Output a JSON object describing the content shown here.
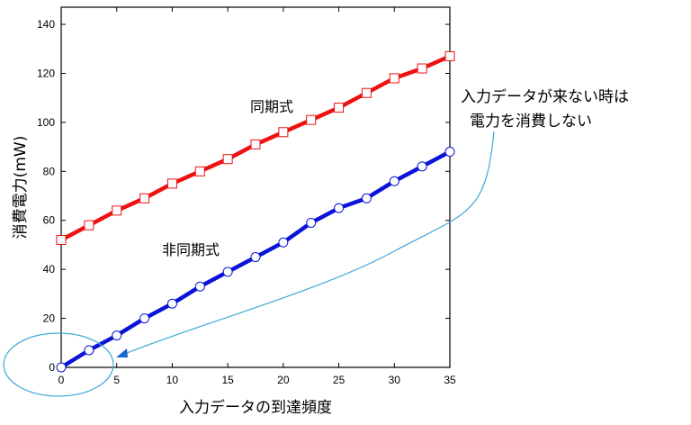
{
  "chart_data": {
    "type": "line",
    "xlabel": "入力データの到達頻度",
    "ylabel": "消費電力(mW)",
    "xlim": [
      0,
      35
    ],
    "ylim": [
      0,
      147
    ],
    "xticks": [
      0,
      5,
      10,
      15,
      20,
      25,
      30,
      35
    ],
    "yticks": [
      0,
      20,
      40,
      60,
      80,
      100,
      120,
      140
    ],
    "grid": false,
    "series": [
      {
        "name": "同期式",
        "color": "#ee1111",
        "marker": "square",
        "x": [
          0,
          2.5,
          5,
          7.5,
          10,
          12.5,
          15,
          17.5,
          20,
          22.5,
          25,
          27.5,
          30,
          32.5,
          35
        ],
        "y": [
          52,
          58,
          64,
          69,
          75,
          80,
          85,
          91,
          96,
          101,
          106,
          112,
          118,
          122,
          127
        ]
      },
      {
        "name": "非同期式",
        "color": "#0a14d8",
        "marker": "circle",
        "x": [
          0,
          2.5,
          5,
          7.5,
          10,
          12.5,
          15,
          17.5,
          20,
          22.5,
          25,
          27.5,
          30,
          32.5,
          35
        ],
        "y": [
          0,
          7,
          13,
          20,
          26,
          33,
          39,
          45,
          51,
          59,
          65,
          69,
          76,
          82,
          88
        ]
      }
    ],
    "annotations": {
      "line1": "入力データが来ない時は",
      "line2": "電力を消費しない"
    },
    "annotation_color": "#3aa8d8"
  }
}
